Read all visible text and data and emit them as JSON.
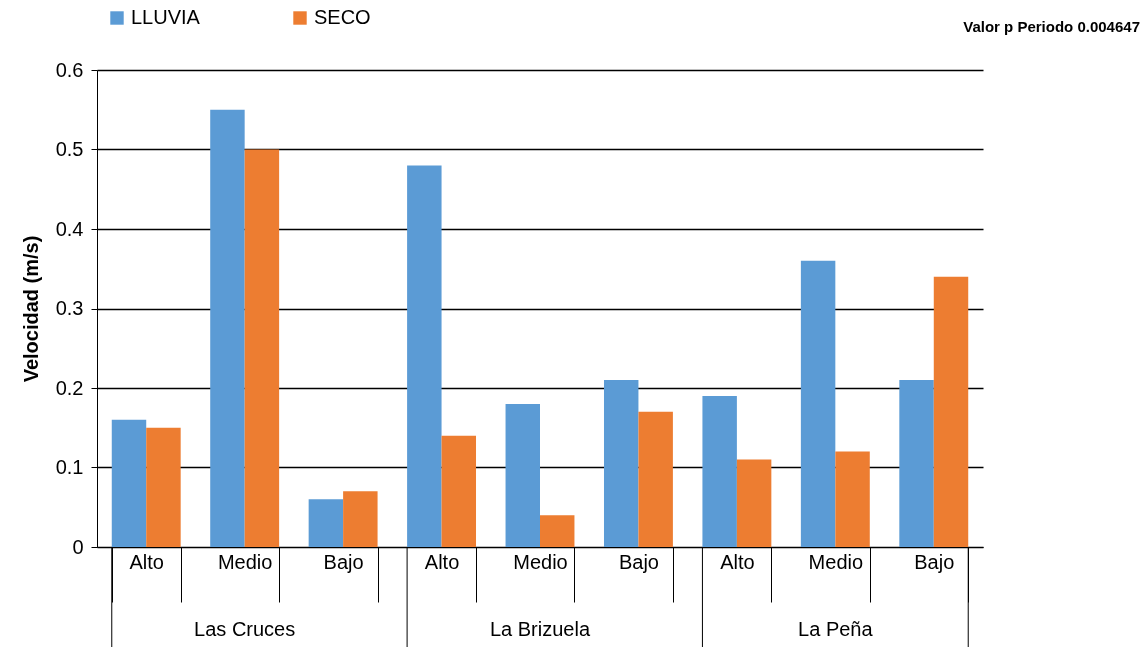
{
  "chart_data": {
    "type": "bar",
    "title": "Valor p Periodo 0.004647",
    "ylabel": "Velocidad (m/s)",
    "categories": [
      "Alto",
      "Medio",
      "Bajo",
      "Alto",
      "Medio",
      "Bajo",
      "Alto",
      "Medio",
      "Bajo"
    ],
    "annotations": [
      "Las Cruces",
      "La Brizuela",
      "La Peña"
    ],
    "series": [
      {
        "name": "LLUVIA",
        "color": "#5b9bd5",
        "values": [
          0.16,
          0.55,
          0.06,
          0.48,
          0.18,
          0.21,
          0.19,
          0.36,
          0.21
        ]
      },
      {
        "name": "SECO",
        "color": "#ed7d31",
        "values": [
          0.15,
          0.5,
          0.07,
          0.14,
          0.04,
          0.17,
          0.11,
          0.12,
          0.34
        ]
      }
    ],
    "ylim": [
      0,
      0.6
    ],
    "yticks": [
      0,
      0.1,
      0.2,
      0.3,
      0.4,
      0.5,
      0.6
    ],
    "grid": "y",
    "legend": "top left"
  }
}
